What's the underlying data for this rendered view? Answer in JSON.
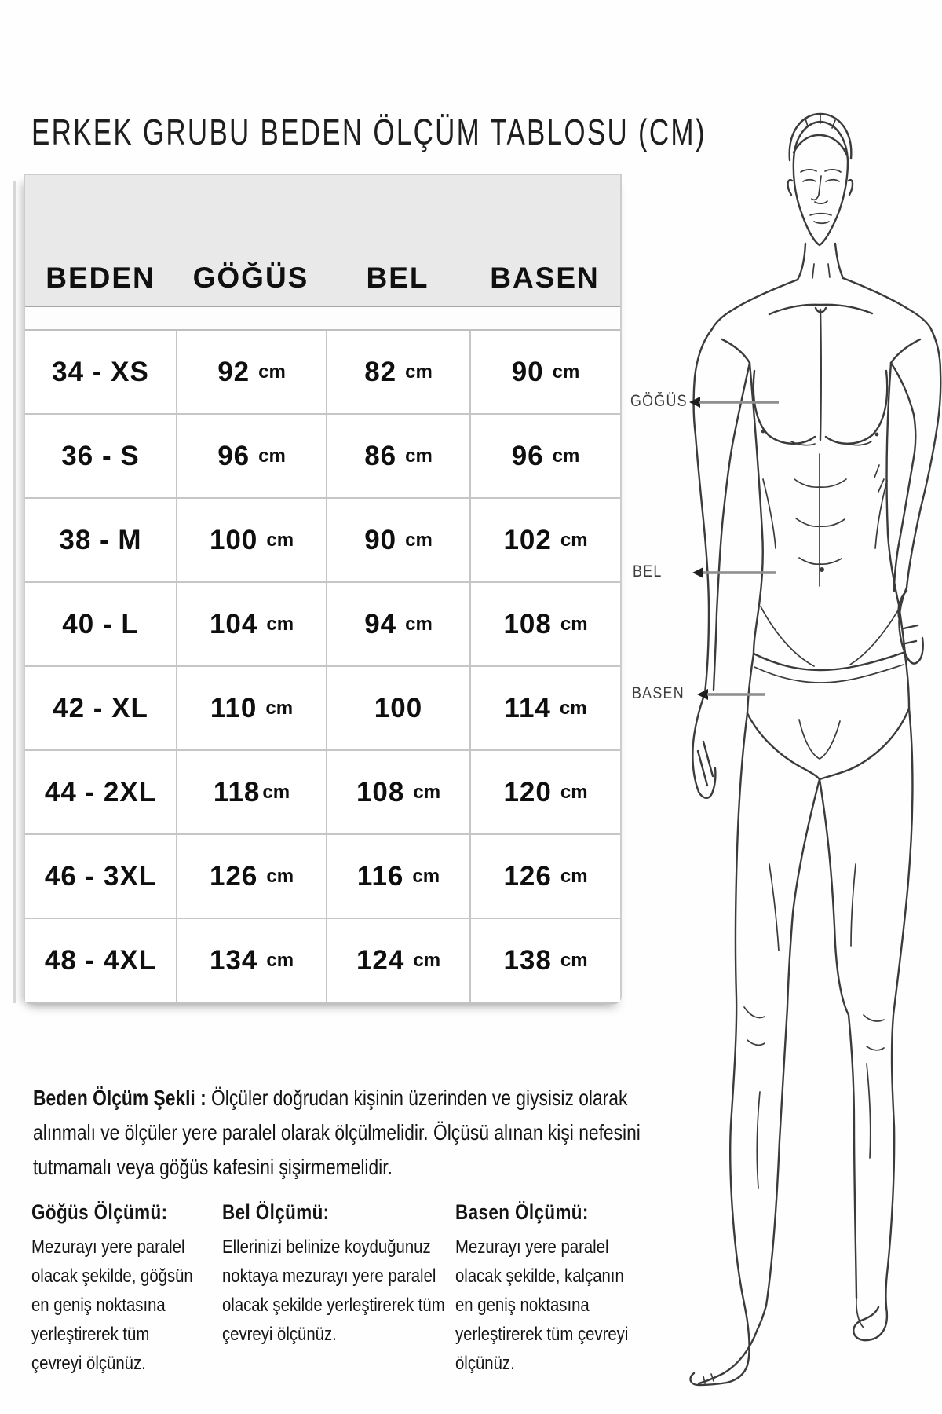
{
  "title": "ERKEK GRUBU BEDEN ÖLÇÜM TABLOSU (CM)",
  "table": {
    "headers": [
      "BEDEN",
      "GÖĞÜS",
      "BEL",
      "BASEN"
    ],
    "rows": [
      {
        "size": "34 - XS",
        "chest": "92 cm",
        "waist": "82 cm",
        "hip": "90 cm"
      },
      {
        "size": "36 - S",
        "chest": "96 cm",
        "waist": "86 cm",
        "hip": "96 cm"
      },
      {
        "size": "38 - M",
        "chest": "100 cm",
        "waist": "90 cm",
        "hip": "102 cm"
      },
      {
        "size": "40 - L",
        "chest": "104 cm",
        "waist": "94 cm",
        "hip": "108 cm"
      },
      {
        "size": "42 - XL",
        "chest": "110 cm",
        "waist": "100",
        "hip": "114 cm"
      },
      {
        "size": "44 - 2XL",
        "chest": "118cm",
        "waist": "108 cm",
        "hip": "120 cm"
      },
      {
        "size": "46 - 3XL",
        "chest": "126 cm",
        "waist": "116 cm",
        "hip": "126 cm"
      },
      {
        "size": "48 - 4XL",
        "chest": "134 cm",
        "waist": "124 cm",
        "hip": "138 cm"
      }
    ]
  },
  "figure": {
    "labels": [
      {
        "text": "GÖĞÜS"
      },
      {
        "text": "BEL"
      },
      {
        "text": "BASEN"
      }
    ]
  },
  "note": {
    "label": "Beden Ölçüm Şekli :",
    "text": "Ölçüler doğrudan kişinin üzerinden ve giysisiz olarak alınmalı ve ölçüler yere paralel olarak ölçülmelidir. Ölçüsü alınan kişi nefesini tutmamalı veya göğüs kafesini şişirmemelidir."
  },
  "sections": [
    {
      "heading": "Göğüs Ölçümü:",
      "body": "Mezurayı yere paralel olacak şekilde, göğsün en geniş noktasına yerleştirerek tüm çevreyi ölçünüz."
    },
    {
      "heading": "Bel Ölçümü:",
      "body": "Ellerinizi belinize koyduğunuz noktaya mezurayı yere paralel olacak şekilde yerleştirerek tüm çevreyi ölçünüz."
    },
    {
      "heading": "Basen Ölçümü:",
      "body": "Mezurayı yere paralel olacak şekilde, kalçanın en geniş noktasına yerleştirerek tüm çevreyi ölçünüz."
    }
  ],
  "colors": {
    "header_bg": "#e9e9e9",
    "grid_line": "#c6c6c6",
    "text": "#141414",
    "arrow_line": "#8f8f8f",
    "arrow_head": "#1f1f1f"
  }
}
